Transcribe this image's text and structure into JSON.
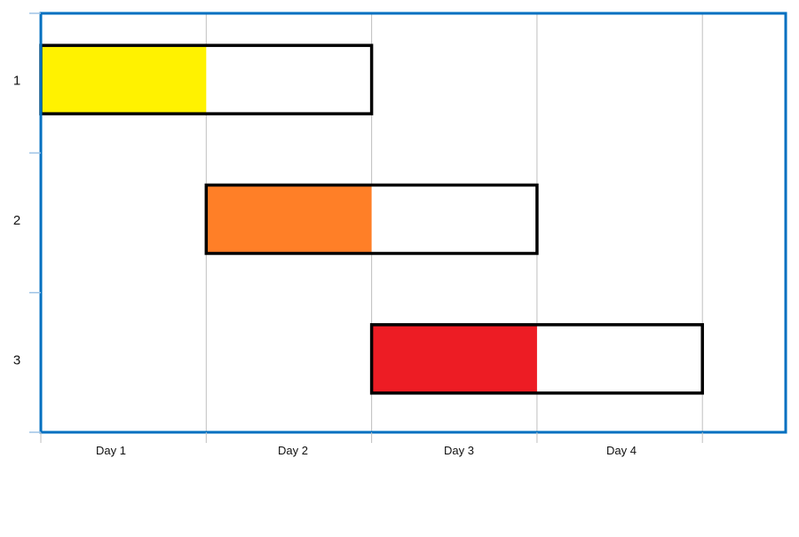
{
  "chart_data": {
    "type": "bar",
    "subtype": "gantt",
    "orientation": "horizontal",
    "categories": [
      "1",
      "2",
      "3"
    ],
    "x_tick_labels": [
      "Day 1",
      "Day 2",
      "Day 3",
      "Day 4"
    ],
    "xlim": [
      0,
      4.5
    ],
    "tasks": [
      {
        "label": "1",
        "start": 0,
        "duration": 2,
        "progress": 0.5,
        "color": "#FFF200"
      },
      {
        "label": "2",
        "start": 1,
        "duration": 2,
        "progress": 0.5,
        "color": "#FF7F27"
      },
      {
        "label": "3",
        "start": 2,
        "duration": 2,
        "progress": 0.5,
        "color": "#ED1C24"
      }
    ],
    "grid": {
      "vertical": true,
      "horizontal": false
    },
    "colors": {
      "frame": "#0070C0",
      "grid": "#BFBFBF",
      "bar_outline": "#000000"
    }
  }
}
